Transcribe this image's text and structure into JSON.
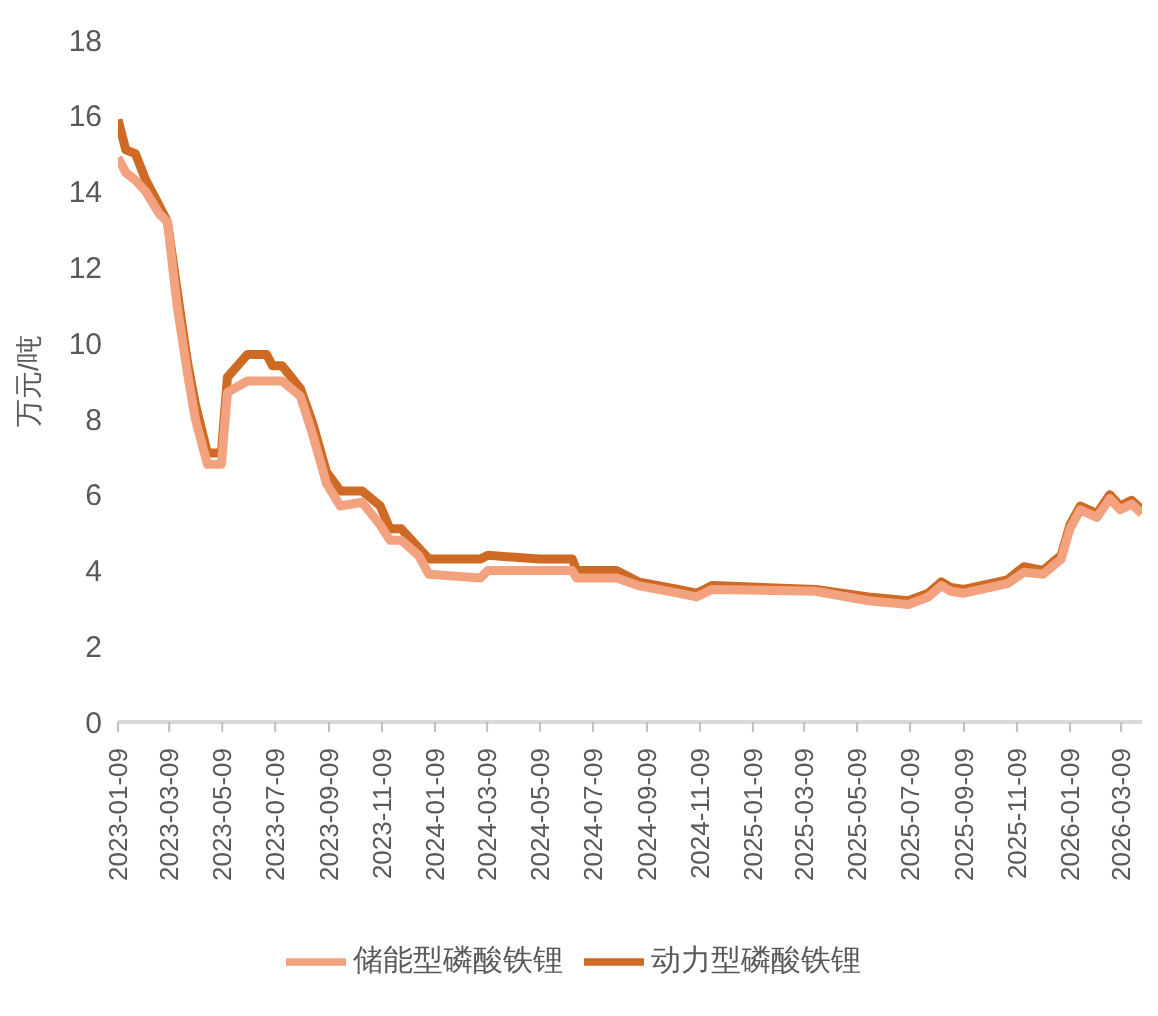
{
  "chart_data": {
    "type": "line",
    "ylabel": "万元/吨",
    "x": [
      "2023-01-09",
      "2023-01-18",
      "2023-01-29",
      "2023-02-10",
      "2023-02-26",
      "2023-03-07",
      "2023-03-18",
      "2023-03-30",
      "2023-04-08",
      "2023-04-22",
      "2023-05-08",
      "2023-05-15",
      "2023-06-07",
      "2023-06-29",
      "2023-07-06",
      "2023-07-17",
      "2023-08-07",
      "2023-08-21",
      "2023-09-06",
      "2023-09-22",
      "2023-10-17",
      "2023-11-07",
      "2023-11-18",
      "2023-12-01",
      "2023-12-21",
      "2024-01-02",
      "2024-03-01",
      "2024-03-10",
      "2024-05-09",
      "2024-06-15",
      "2024-06-20",
      "2024-08-05",
      "2024-08-30",
      "2024-10-15",
      "2024-11-05",
      "2024-11-23",
      "2025-03-22",
      "2025-05-22",
      "2025-07-07",
      "2025-07-30",
      "2025-08-14",
      "2025-08-25",
      "2025-09-09",
      "2025-10-29",
      "2025-11-17",
      "2025-12-09",
      "2025-12-30",
      "2026-01-09",
      "2026-01-21",
      "2026-02-09",
      "2026-02-24",
      "2026-03-08",
      "2026-03-21",
      "2026-04-02"
    ],
    "series": [
      {
        "name": "动力型磷酸铁锂",
        "color": "#cf6a24",
        "values": [
          15.9,
          15.1,
          15.0,
          14.3,
          13.6,
          13.2,
          11.4,
          9.5,
          8.4,
          7.1,
          7.1,
          9.1,
          9.7,
          9.7,
          9.4,
          9.4,
          8.8,
          7.9,
          6.6,
          6.1,
          6.1,
          5.7,
          5.1,
          5.1,
          4.6,
          4.3,
          4.3,
          4.4,
          4.3,
          4.3,
          4.0,
          4.0,
          3.7,
          3.5,
          3.4,
          3.6,
          3.5,
          3.3,
          3.2,
          3.4,
          3.7,
          3.55,
          3.5,
          3.75,
          4.1,
          4.0,
          4.4,
          5.2,
          5.7,
          5.5,
          6.0,
          5.7,
          5.85,
          5.6
        ]
      },
      {
        "name": "储能型磷酸铁锂",
        "color": "#f2a27e",
        "values": [
          14.9,
          14.5,
          14.3,
          14.0,
          13.4,
          13.2,
          11.0,
          9.2,
          8.0,
          6.8,
          6.8,
          8.7,
          9.0,
          9.0,
          9.0,
          9.0,
          8.6,
          7.6,
          6.3,
          5.7,
          5.8,
          5.2,
          4.8,
          4.8,
          4.4,
          3.9,
          3.8,
          4.0,
          4.0,
          4.0,
          3.8,
          3.8,
          3.6,
          3.4,
          3.3,
          3.5,
          3.45,
          3.2,
          3.1,
          3.3,
          3.6,
          3.45,
          3.4,
          3.65,
          3.95,
          3.9,
          4.3,
          5.1,
          5.6,
          5.4,
          5.9,
          5.6,
          5.75,
          5.5
        ]
      }
    ],
    "xlim": [
      "2023-01-09",
      "2026-04-02"
    ],
    "xticks": [
      "2023-01-09",
      "2023-03-09",
      "2023-05-09",
      "2023-07-09",
      "2023-09-09",
      "2023-11-09",
      "2024-01-09",
      "2024-03-09",
      "2024-05-09",
      "2024-07-09",
      "2024-09-09",
      "2024-11-09",
      "2025-01-09",
      "2025-03-09",
      "2025-05-09",
      "2025-07-09",
      "2025-09-09",
      "2025-11-09",
      "2026-01-09",
      "2026-03-09"
    ],
    "ylim": [
      0,
      18
    ],
    "yticks": [
      0,
      2,
      4,
      6,
      8,
      10,
      12,
      14,
      16,
      18
    ],
    "legend": "bottom",
    "grid": false
  }
}
